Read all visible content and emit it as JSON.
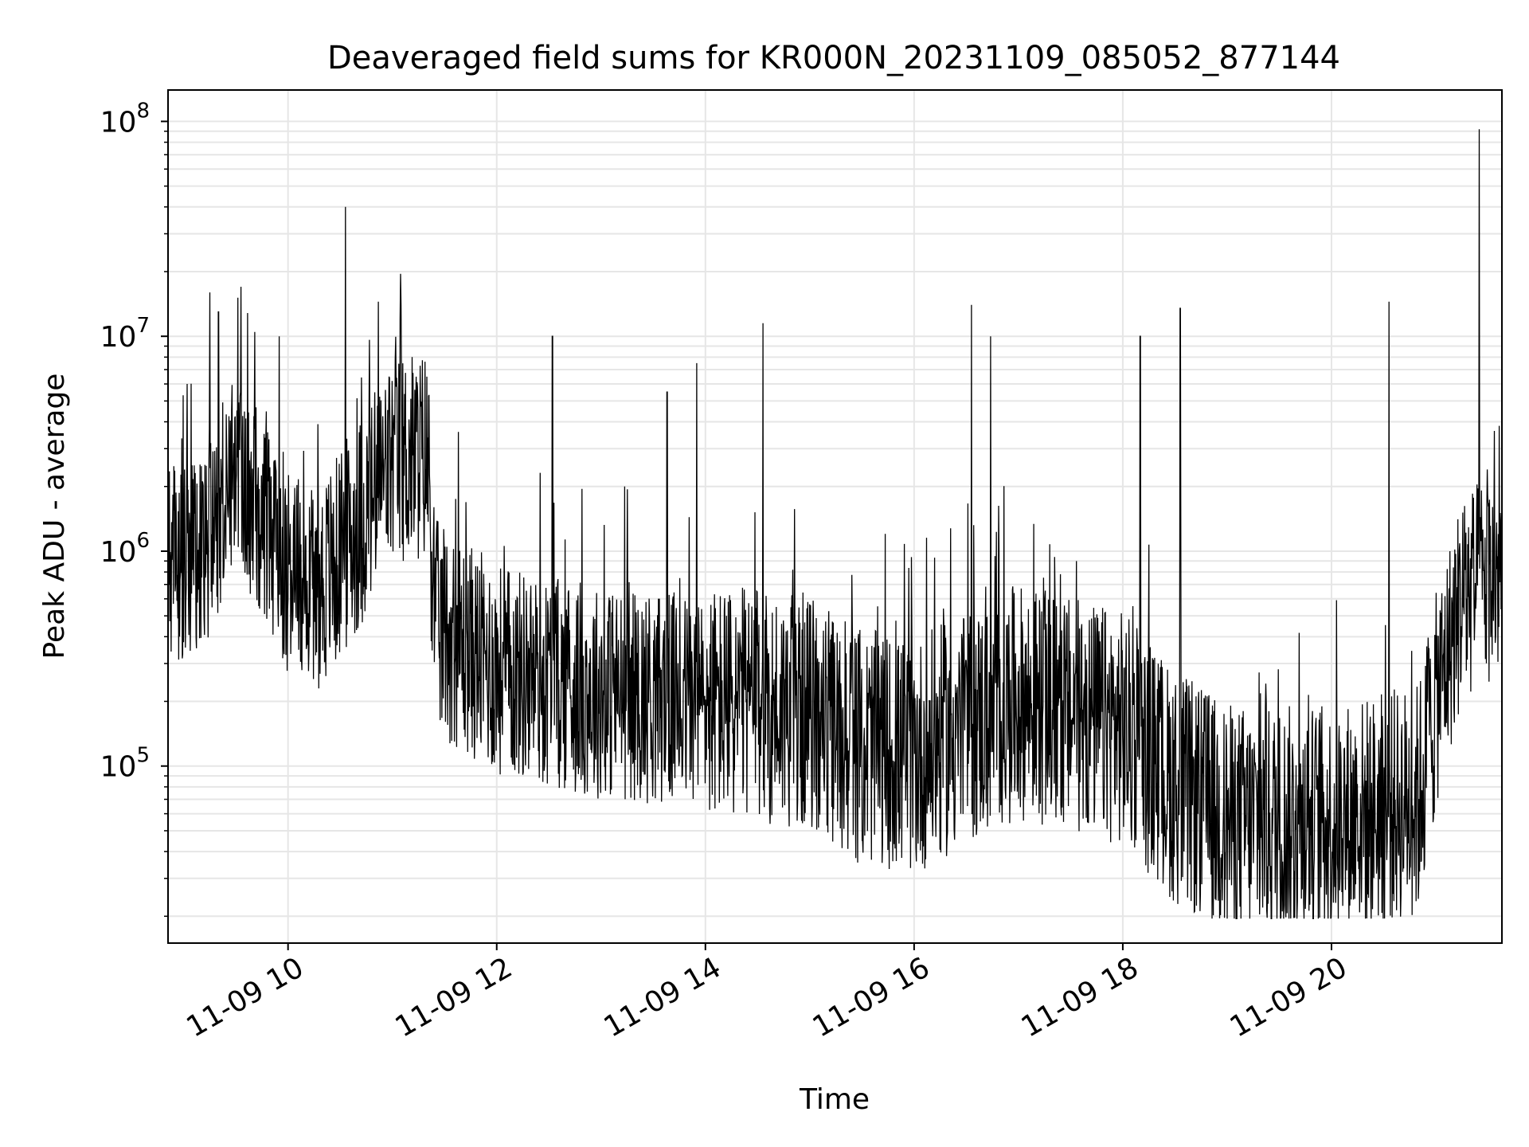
{
  "chart_data": {
    "type": "line",
    "title": "Deaveraged field sums for KR000N_20231109_085052_877144",
    "xlabel": "Time",
    "ylabel": "Peak ADU - average",
    "yscale": "log",
    "ylim": [
      15000,
      140000000
    ],
    "xlim": [
      "2023-11-09 08:51",
      "2023-11-09 21:38"
    ],
    "grid": true,
    "line_color": "#000000",
    "grid_color": "#e6e6e6",
    "x_ticks": [
      {
        "t": "2023-11-09 10:00",
        "label": "11-09 10"
      },
      {
        "t": "2023-11-09 12:00",
        "label": "11-09 12"
      },
      {
        "t": "2023-11-09 14:00",
        "label": "11-09 14"
      },
      {
        "t": "2023-11-09 16:00",
        "label": "11-09 16"
      },
      {
        "t": "2023-11-09 18:00",
        "label": "11-09 18"
      },
      {
        "t": "2023-11-09 20:00",
        "label": "11-09 20"
      }
    ],
    "y_ticks": [
      {
        "value": 100000,
        "base": "10",
        "exp": "5"
      },
      {
        "value": 1000000,
        "base": "10",
        "exp": "6"
      },
      {
        "value": 10000000,
        "base": "10",
        "exp": "7"
      },
      {
        "value": 100000000,
        "base": "10",
        "exp": "8"
      }
    ],
    "series": [
      {
        "baseline": [
          [
            "2023-11-09 08:51",
            800000
          ],
          [
            "2023-11-09 09:15",
            1200000
          ],
          [
            "2023-11-09 09:30",
            2500000
          ],
          [
            "2023-11-09 09:45",
            1600000
          ],
          [
            "2023-11-09 10:00",
            850000
          ],
          [
            "2023-11-09 10:20",
            700000
          ],
          [
            "2023-11-09 10:40",
            1300000
          ],
          [
            "2023-11-09 11:00",
            2600000
          ],
          [
            "2023-11-09 11:20",
            2800000
          ],
          [
            "2023-11-09 11:25",
            450000
          ],
          [
            "2023-11-09 12:00",
            280000
          ],
          [
            "2023-11-09 13:00",
            220000
          ],
          [
            "2023-11-09 14:00",
            200000
          ],
          [
            "2023-11-09 15:00",
            180000
          ],
          [
            "2023-11-09 15:20",
            130000
          ],
          [
            "2023-11-09 16:00",
            110000
          ],
          [
            "2023-11-09 16:30",
            150000
          ],
          [
            "2023-11-09 17:00",
            200000
          ],
          [
            "2023-11-09 18:00",
            150000
          ],
          [
            "2023-11-09 18:30",
            80000
          ],
          [
            "2023-11-09 19:00",
            55000
          ],
          [
            "2023-11-09 20:00",
            55000
          ],
          [
            "2023-11-09 20:50",
            70000
          ],
          [
            "2023-11-09 21:00",
            200000
          ],
          [
            "2023-11-09 21:15",
            600000
          ],
          [
            "2023-11-09 21:38",
            800000
          ]
        ],
        "spikes": [
          [
            "2023-11-09 10:33",
            40000000
          ],
          [
            "2023-11-09 09:33",
            17000000
          ],
          [
            "2023-11-09 09:15",
            16000000
          ],
          [
            "2023-11-09 09:20",
            13000000
          ],
          [
            "2023-11-09 10:52",
            14500000
          ],
          [
            "2023-11-09 11:05",
            14000000
          ],
          [
            "2023-11-09 09:55",
            10000000
          ],
          [
            "2023-11-09 12:32",
            10000000
          ],
          [
            "2023-11-09 13:38",
            5500000
          ],
          [
            "2023-11-09 13:55",
            7500000
          ],
          [
            "2023-11-09 14:33",
            11500000
          ],
          [
            "2023-11-09 16:33",
            14000000
          ],
          [
            "2023-11-09 16:44",
            10000000
          ],
          [
            "2023-11-09 18:10",
            10000000
          ],
          [
            "2023-11-09 18:33",
            13500000
          ],
          [
            "2023-11-09 20:33",
            14500000
          ],
          [
            "2023-11-09 21:25",
            92000000
          ]
        ]
      }
    ]
  }
}
